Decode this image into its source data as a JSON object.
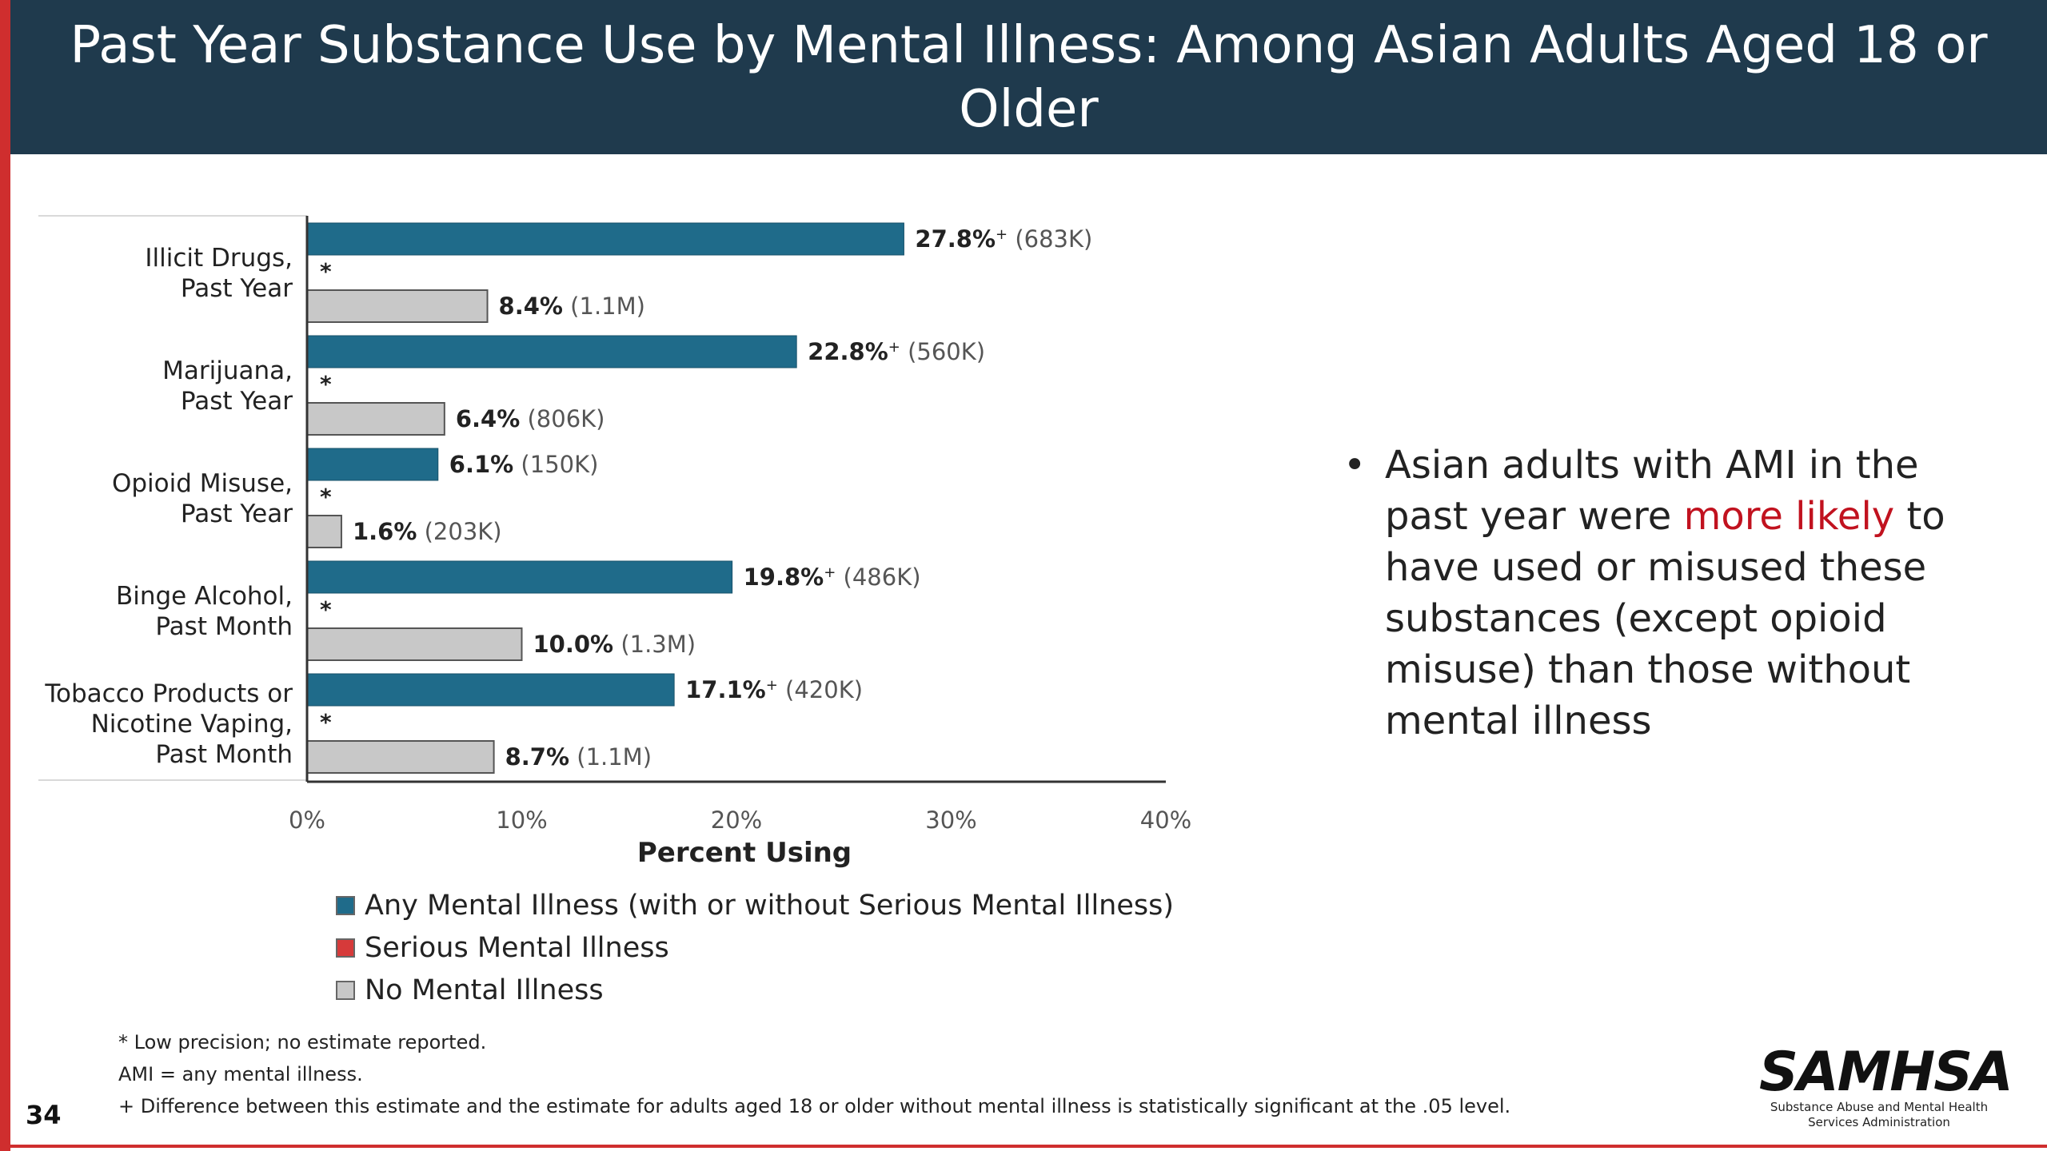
{
  "slide": {
    "title": "Past Year Substance Use by Mental Illness: Among Asian Adults Aged 18 or Older",
    "page_number": "34",
    "colors": {
      "accent_red": "#cf2e2e",
      "title_bar": "#1f3a4d",
      "highlight_red": "#c1121f"
    }
  },
  "chart_data": {
    "type": "bar",
    "orientation": "horizontal",
    "categories": [
      [
        "Illicit Drugs,",
        "Past Year"
      ],
      [
        "Marijuana,",
        "Past Year"
      ],
      [
        "Opioid Misuse,",
        "Past Year"
      ],
      [
        "Binge Alcohol,",
        "Past Month"
      ],
      [
        "Tobacco Products or",
        "Nicotine Vaping,",
        "Past Month"
      ]
    ],
    "series": [
      {
        "name": "Any Mental Illness (with or without Serious Mental Illness)",
        "color": "#1f6b8a",
        "values": [
          27.8,
          22.8,
          6.1,
          19.8,
          17.1
        ],
        "value_labels": [
          "27.8%",
          "22.8%",
          "6.1%",
          "19.8%",
          "17.1%"
        ],
        "significance": [
          "+",
          "+",
          "",
          "+",
          "+"
        ],
        "counts": [
          "(683K)",
          "(560K)",
          "(150K)",
          "(486K)",
          "(420K)"
        ]
      },
      {
        "name": "Serious Mental Illness",
        "color": "#d63a3a",
        "values": [
          null,
          null,
          null,
          null,
          null
        ],
        "placeholder_labels": [
          "*",
          "*",
          "*",
          "*",
          "*"
        ]
      },
      {
        "name": "No Mental Illness",
        "color": "#c8c8c8",
        "values": [
          8.4,
          6.4,
          1.6,
          10.0,
          8.7
        ],
        "value_labels": [
          "8.4%",
          "6.4%",
          "1.6%",
          "10.0%",
          "8.7%"
        ],
        "significance": [
          "",
          "",
          "",
          "",
          ""
        ],
        "counts": [
          "(1.1M)",
          "(806K)",
          "(203K)",
          "(1.3M)",
          "(1.1M)"
        ]
      }
    ],
    "xlim": [
      0,
      40
    ],
    "xticks": [
      0,
      10,
      20,
      30,
      40
    ],
    "xtick_labels": [
      "0%",
      "10%",
      "20%",
      "30%",
      "40%"
    ],
    "xlabel": "Percent Using",
    "ylabel": "",
    "grid": false,
    "legend_position": "bottom"
  },
  "bullet": {
    "before": "Asian adults with AMI in the past year were ",
    "highlight": "more likely",
    "after": " to have used or misused these substances (except opioid misuse) than those without mental illness"
  },
  "footnotes": [
    "* Low precision; no estimate reported.",
    "AMI = any mental illness.",
    "+ Difference between this estimate and the estimate for adults aged 18 or older without mental illness is statistically significant at the .05 level."
  ],
  "logo": {
    "wordmark": "SAMHSA",
    "subtitle_line1": "Substance Abuse and Mental Health",
    "subtitle_line2": "Services Administration"
  }
}
